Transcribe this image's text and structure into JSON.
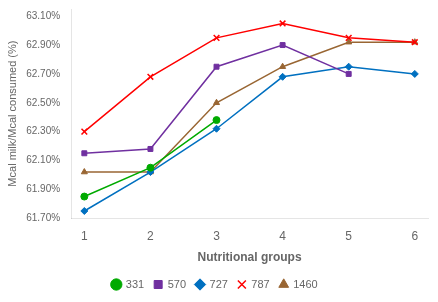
{
  "chart_data": {
    "type": "line",
    "xlabel": "Nutritional groups",
    "ylabel": "Mcal milk/Mcal consumed (%)",
    "x": [
      1,
      2,
      3,
      4,
      5,
      6
    ],
    "series": [
      {
        "name": "331",
        "color": "#00aa00",
        "marker": "circle",
        "values": [
          61.85,
          62.05,
          62.38,
          null,
          null,
          null
        ]
      },
      {
        "name": "570",
        "color": "#7030a0",
        "marker": "square",
        "values": [
          62.15,
          62.18,
          62.75,
          62.9,
          62.7,
          null
        ]
      },
      {
        "name": "727",
        "color": "#0070c0",
        "marker": "diamond",
        "values": [
          61.75,
          62.02,
          62.32,
          62.68,
          62.75,
          62.7
        ]
      },
      {
        "name": "787",
        "color": "#ff0000",
        "marker": "x",
        "values": [
          62.3,
          62.68,
          62.95,
          63.05,
          62.95,
          62.92
        ]
      },
      {
        "name": "1460",
        "color": "#996633",
        "marker": "triangle",
        "values": [
          62.02,
          62.02,
          62.5,
          62.75,
          62.92,
          62.92
        ]
      }
    ],
    "xlim": [
      0.8,
      6.2
    ],
    "xticks": [
      1,
      2,
      3,
      4,
      5,
      6
    ],
    "ylim": [
      61.7,
      63.15
    ],
    "yticks": [
      {
        "value": 61.7,
        "label": "61.70%"
      },
      {
        "value": 61.9,
        "label": "61.90%"
      },
      {
        "value": 62.1,
        "label": "62.10%"
      },
      {
        "value": 62.3,
        "label": "62.30%"
      },
      {
        "value": 62.5,
        "label": "62.50%"
      },
      {
        "value": 62.7,
        "label": "62.70%"
      },
      {
        "value": 62.9,
        "label": "62.90%"
      },
      {
        "value": 63.1,
        "label": "63.10%"
      }
    ],
    "grid": false,
    "legend": "bottom"
  }
}
